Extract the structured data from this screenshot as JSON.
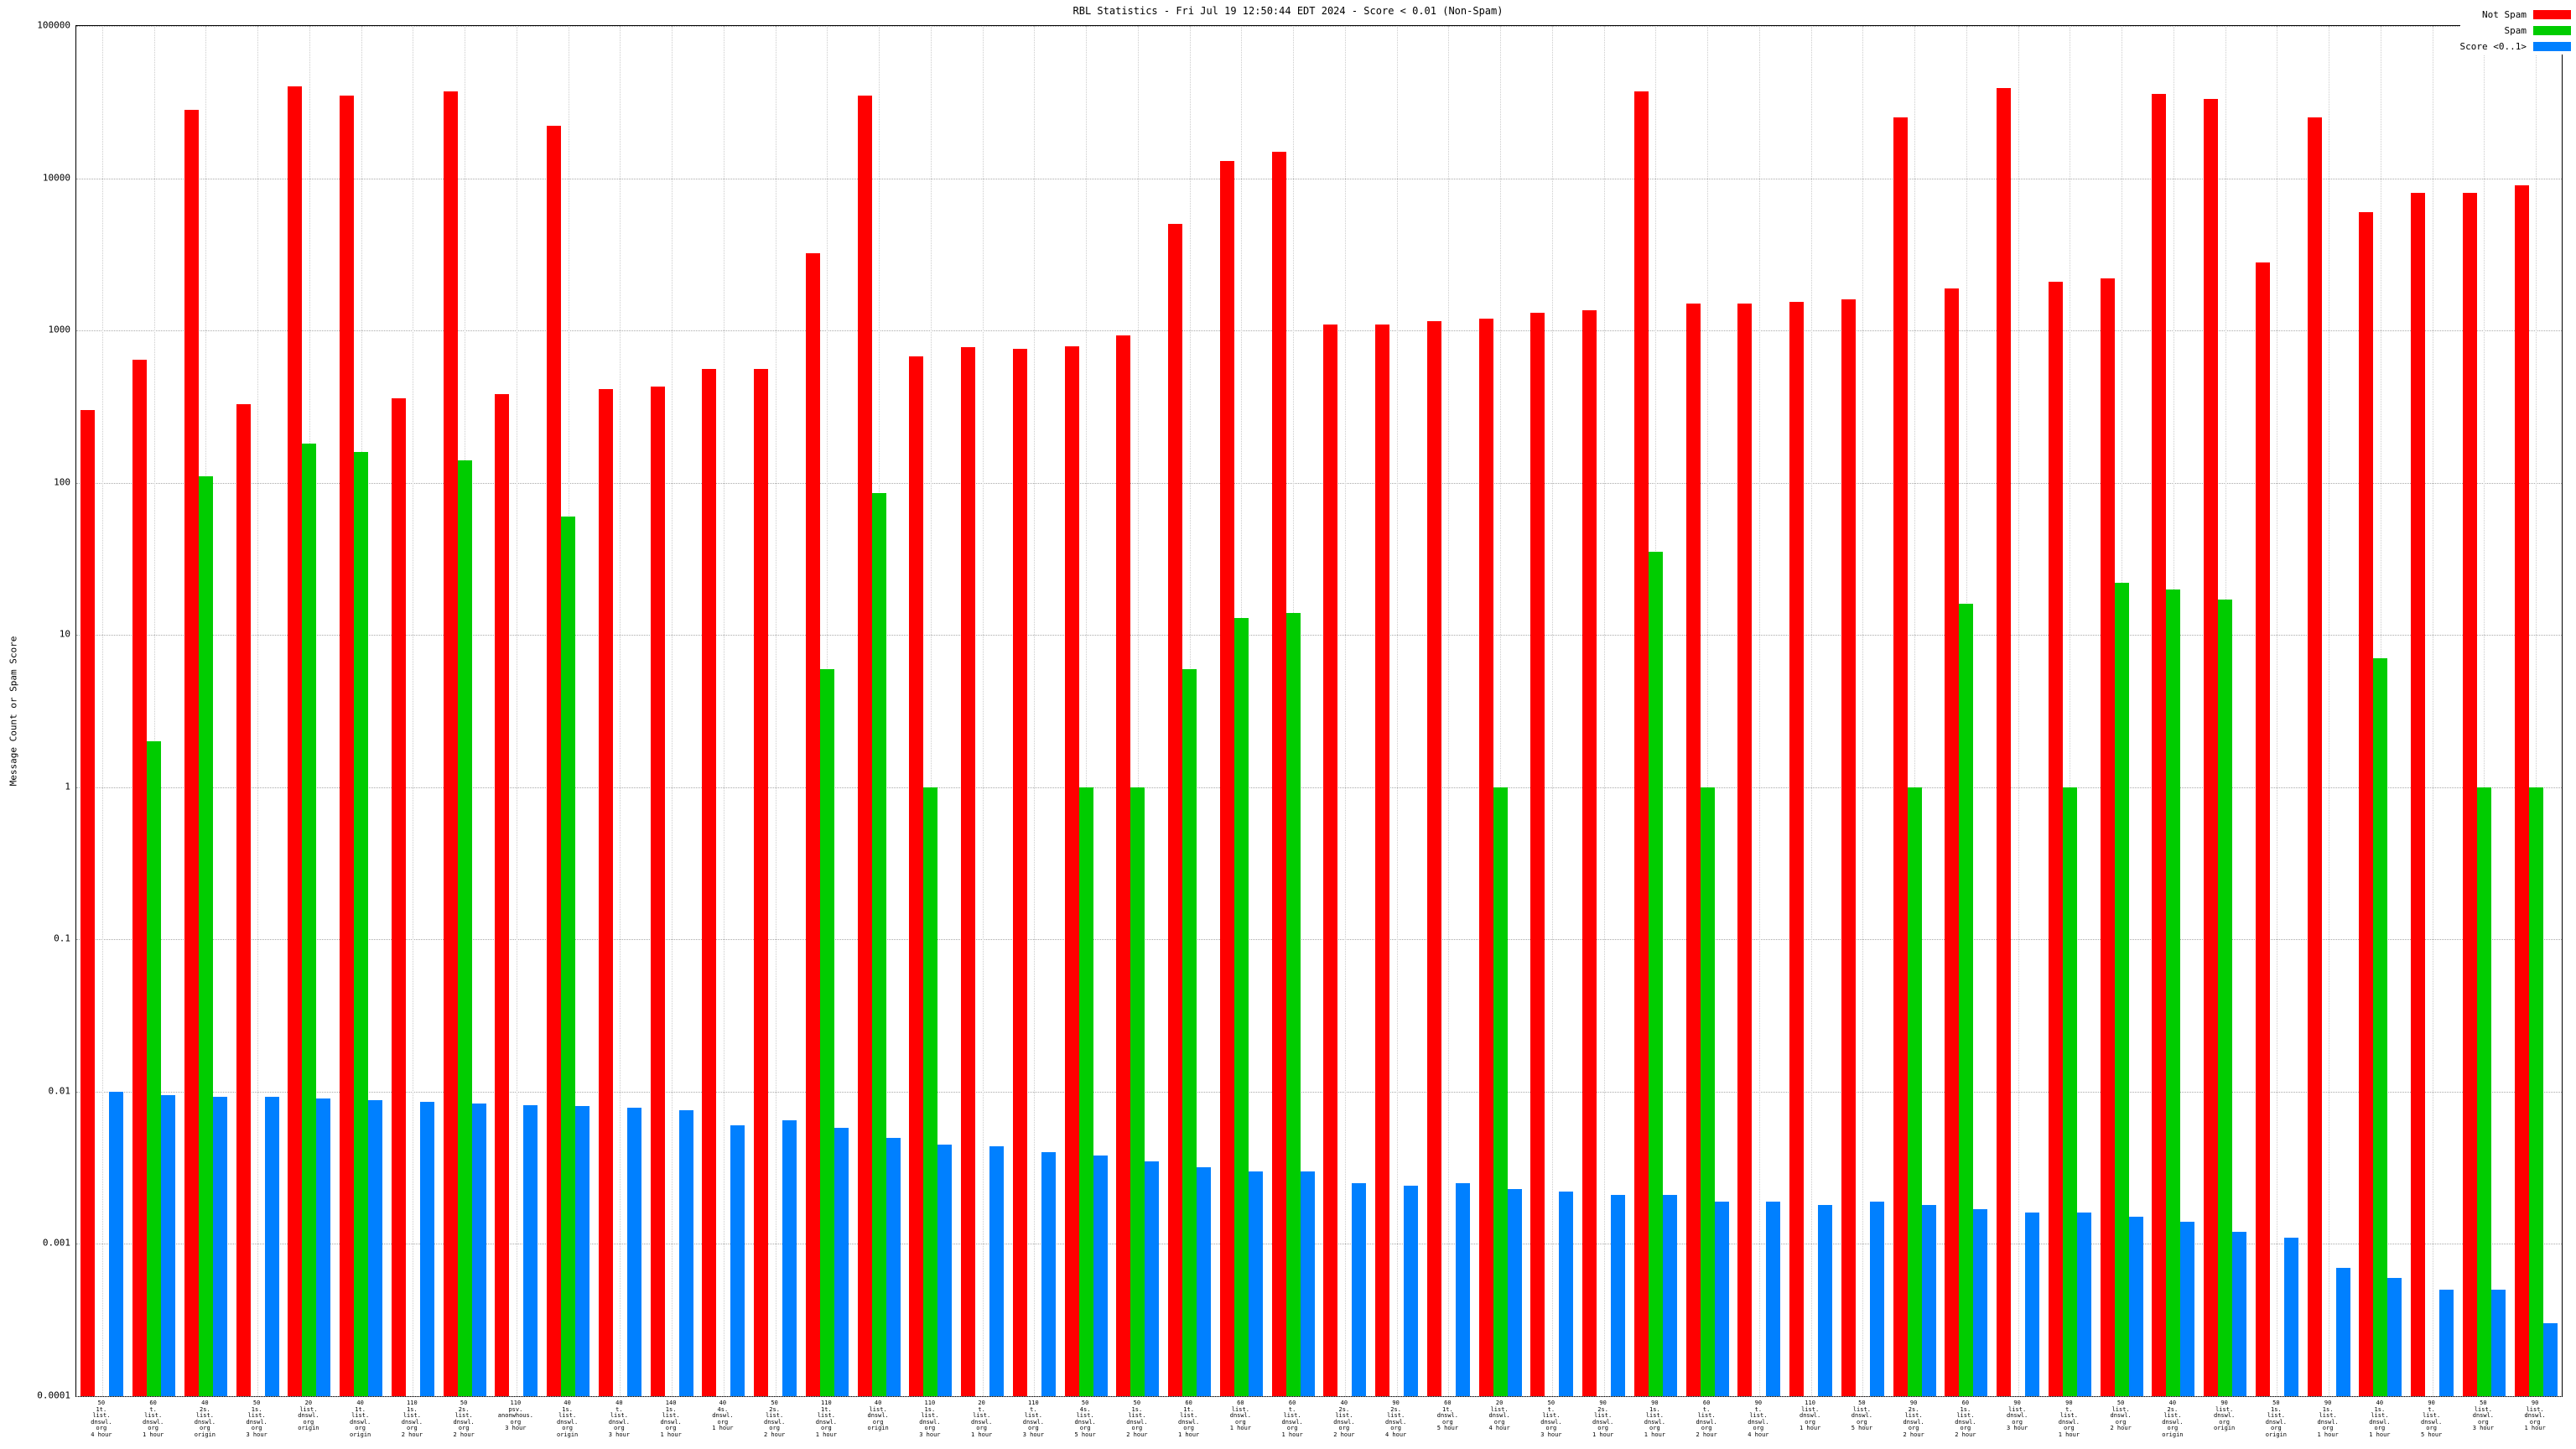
{
  "chart_data": {
    "type": "bar",
    "title": "RBL Statistics - Fri Jul 19 12:50:44 EDT 2024 - Score < 0.01 (Non-Spam)",
    "ylabel": "Message Count or Spam Score",
    "xlabel": "",
    "y_scale": "log",
    "ylim": [
      0.0001,
      100000
    ],
    "y_tick_labels": [
      "100000",
      "10000",
      "1000",
      "100",
      "10",
      "1",
      "0.1",
      "0.01",
      "0.001",
      "0.0001"
    ],
    "grid": true,
    "legend_position": "top-right",
    "categories": [
      "50\n1t.\nlist.\ndnswl.\norg\n4 hour",
      "60\nt.\nlist.\ndnswl.\norg\n1 hour",
      "40\n2s.\nlist.\ndnswl.\norg\norigin",
      "50\n1s.\nlist.\ndnswl.\norg\n3 hour",
      "20\nlist.\ndnswl.\norg\norigin",
      "40\n1t.\nlist.\ndnswl.\norg\norigin",
      "110\n1s.\nlist.\ndnswl.\norg\n2 hour",
      "50\n2s.\nlist.\ndnswl.\norg\n2 hour",
      "110\npsv.\nanonwhous.\norg\n3 hour",
      "40\n1s.\nlist.\ndnswl.\norg\norigin",
      "40\nt.\nlist.\ndnswl.\norg\n3 hour",
      "140\n1s.\nlist.\ndnswl.\norg\n1 hour",
      "40\n4s.\ndnswl.\norg\n1 hour",
      "50\n2s.\nlist.\ndnswl.\norg\n2 hour",
      "110\n1t.\nlist.\ndnswl.\norg\n1 hour",
      "40\nlist.\ndnswl.\norg\norigin",
      "110\n1s.\nlist.\ndnswl.\norg\n3 hour",
      "20\nt.\nlist.\ndnswl.\norg\n1 hour",
      "110\nt.\nlist.\ndnswl.\norg\n3 hour",
      "50\n4s.\nlist.\ndnswl.\norg\n5 hour",
      "50\n1s.\nlist.\ndnswl.\norg\n2 hour",
      "60\n1t.\nlist.\ndnswl.\norg\n1 hour",
      "60\nlist.\ndnswl.\norg\n1 hour",
      "60\nt.\nlist.\ndnswl.\norg\n1 hour",
      "40\n2s.\nlist.\ndnswl.\norg\n2 hour",
      "90\n2s.\nlist.\ndnswl.\norg\n4 hour",
      "60\n1t.\ndnswl.\norg\n5 hour",
      "20\nlist.\ndnswl.\norg\n4 hour",
      "50\nt.\nlist.\ndnswl.\norg\n3 hour",
      "90\n2s.\nlist.\ndnswl.\norg\n1 hour",
      "90\n1s.\nlist.\ndnswl.\norg\n1 hour",
      "60\nt.\nlist.\ndnswl.\norg\n2 hour",
      "90\nt.\nlist.\ndnswl.\norg\n4 hour",
      "110\nlist.\ndnswl.\norg\n1 hour",
      "50\nlist.\ndnswl.\norg\n5 hour",
      "90\n2s.\nlist.\ndnswl.\norg\n2 hour",
      "60\n1s.\nlist.\ndnswl.\norg\n2 hour",
      "90\nlist.\ndnswl.\norg\n3 hour",
      "90\nt.\nlist.\ndnswl.\norg\n1 hour",
      "50\nlist.\ndnswl.\norg\n2 hour",
      "40\n2s.\nlist.\ndnswl.\norg\norigin",
      "90\nlist.\ndnswl.\norg\norigin",
      "50\n1s.\nlist.\ndnswl.\norg\norigin",
      "90\n1s.\nlist.\ndnswl.\norg\n1 hour",
      "40\n1s.\nlist.\ndnswl.\norg\n1 hour",
      "90\nt.\nlist.\ndnswl.\norg\n5 hour",
      "50\nlist.\ndnswl.\norg\n3 hour",
      "90\nlist.\ndnswl.\norg\n1 hour"
    ],
    "series": [
      {
        "name": "Not Spam",
        "color": "#ff0000",
        "values": [
          300,
          640,
          28000,
          330,
          40000,
          35000,
          360,
          37000,
          380,
          22000,
          410,
          430,
          560,
          560,
          3200,
          35000,
          680,
          780,
          760,
          790,
          930,
          5000,
          13000,
          15000,
          1100,
          1100,
          1150,
          1200,
          1300,
          1350,
          37000,
          1500,
          1500,
          1550,
          1600,
          25000,
          1900,
          39000,
          2100,
          2200,
          36000,
          33000,
          2800,
          25000,
          6000,
          8000,
          8000,
          9000
        ]
      },
      {
        "name": "Spam",
        "color": "#00cc00",
        "values": [
          0,
          2,
          110,
          0,
          180,
          160,
          0,
          140,
          0,
          60,
          0,
          0,
          0,
          0,
          6,
          85,
          1,
          0,
          0,
          1,
          1,
          6,
          13,
          14,
          0,
          0,
          0,
          1,
          0,
          0,
          35,
          1,
          0,
          0,
          0,
          1,
          16,
          0,
          1,
          22,
          20,
          17,
          0,
          0,
          7,
          0,
          1,
          1
        ]
      },
      {
        "name": "Score <0..1>",
        "color": "#0080ff",
        "values": [
          0.01,
          0.0095,
          0.0093,
          0.0092,
          0.009,
          0.0088,
          0.0086,
          0.0084,
          0.0082,
          0.0081,
          0.0078,
          0.0076,
          0.006,
          0.0065,
          0.0058,
          0.005,
          0.0045,
          0.0044,
          0.004,
          0.0038,
          0.0035,
          0.0032,
          0.003,
          0.003,
          0.0025,
          0.0024,
          0.0025,
          0.0023,
          0.0022,
          0.0021,
          0.0021,
          0.0019,
          0.0019,
          0.0018,
          0.0019,
          0.0018,
          0.0017,
          0.0016,
          0.0016,
          0.0015,
          0.0014,
          0.0012,
          0.0011,
          0.0007,
          0.0006,
          0.0005,
          0.0005,
          0.0003
        ]
      }
    ]
  }
}
